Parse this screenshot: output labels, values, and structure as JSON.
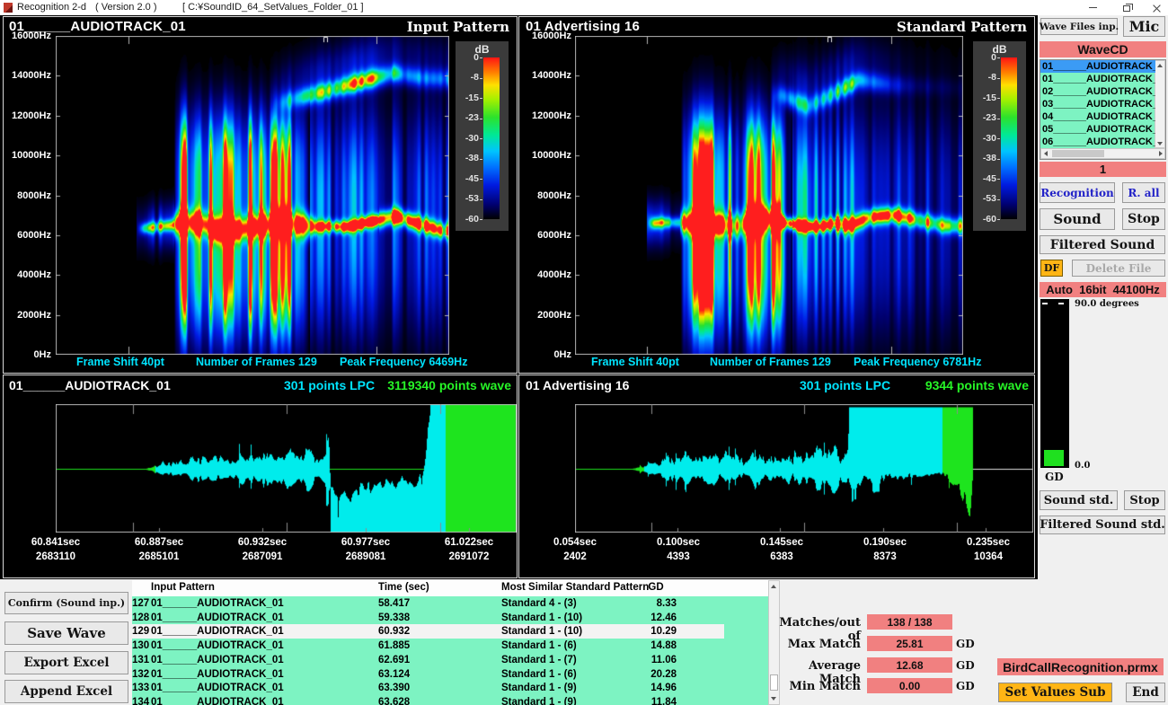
{
  "window": {
    "app_title": "Recognition 2-d",
    "version": "( Version 2.0 )",
    "path": "[ C:¥SoundID_64_SetValues_Folder_01 ]"
  },
  "colors": {
    "pink": "#f18080",
    "mint": "#7df3c2",
    "orange": "#ffb515",
    "selection_blue": "#3b9bf5",
    "cyan_text": "#00e4ff",
    "green_text": "#27f527"
  },
  "spectrograms": {
    "freq_ticks": [
      "16000Hz",
      "14000Hz",
      "12000Hz",
      "10000Hz",
      "8000Hz",
      "6000Hz",
      "4000Hz",
      "2000Hz",
      "0Hz"
    ],
    "colorbar": {
      "title": "dB",
      "ticks": [
        "0",
        "-8",
        "-15",
        "-23",
        "-30",
        "-38",
        "-45",
        "-53",
        "-60"
      ]
    },
    "left": {
      "title": "01______AUDIOTRACK_01",
      "corner_label": "Input Pattern",
      "frame_shift": "Frame Shift 40pt",
      "num_frames": "Number of Frames 129",
      "peak_freq": "Peak Frequency 6469Hz"
    },
    "right": {
      "title": "01 Advertising 16",
      "corner_label": "Standard Pattern",
      "frame_shift": "Frame Shift 40pt",
      "num_frames": "Number of Frames 129",
      "peak_freq": "Peak Frequency 6781Hz"
    }
  },
  "waveforms": {
    "left": {
      "title": "01______AUDIOTRACK_01",
      "lpc": "301 points LPC",
      "wave": "3119340 points wave",
      "time_ticks": [
        "60.841sec",
        "60.887sec",
        "60.932sec",
        "60.977sec",
        "61.022sec"
      ],
      "sample_ticks": [
        "2683110",
        "2685101",
        "2687091",
        "2689081",
        "2691072"
      ]
    },
    "right": {
      "title": "01 Advertising 16",
      "lpc": "301 points LPC",
      "wave": "9344 points wave",
      "time_ticks": [
        "0.054sec",
        "0.100sec",
        "0.145sec",
        "0.190sec",
        "0.235sec"
      ],
      "sample_ticks": [
        "2402",
        "4393",
        "6383",
        "8373",
        "10364"
      ]
    }
  },
  "sidebar": {
    "wave_files_btn": "Wave Files inp.",
    "mic_btn": "Mic",
    "wavecd_label": "WaveCD",
    "file_list": [
      "01______AUDIOTRACK_",
      "01______AUDIOTRACK_",
      "02______AUDIOTRACK_",
      "03______AUDIOTRACK_",
      "04______AUDIOTRACK_",
      "05______AUDIOTRACK_",
      "06______AUDIOTRACK_"
    ],
    "selected_index": 0,
    "count": "1",
    "recognition_btn": "Recognition",
    "r_all_btn": "R. all",
    "sound_btn": "Sound",
    "stop_btn": "Stop",
    "filtered_sound_btn": "Filtered Sound",
    "df_btn": "DF",
    "delete_file_btn": "Delete File",
    "format_label": "Auto  16bit  44100Hz",
    "meter_top_label": "90.0 degrees",
    "meter_bottom_label": "0.0",
    "meter_name": "GD",
    "sound_std_btn": "Sound std.",
    "stop_std_btn": "Stop",
    "filtered_sound_std_btn": "Filtered Sound std."
  },
  "actions": [
    "Confirm (Sound inp.)",
    "Save Wave",
    "Export Excel",
    "Append Excel"
  ],
  "results_table": {
    "headers": [
      "Input Pattern",
      "Time (sec)",
      "Most Similar Standard Pattern",
      "GD"
    ],
    "selected_no": "129",
    "rows": [
      {
        "no": "127",
        "input": "01______AUDIOTRACK_01",
        "time": "58.417",
        "standard": "Standard 4 - (3)",
        "gd": "8.33"
      },
      {
        "no": "128",
        "input": "01______AUDIOTRACK_01",
        "time": "59.338",
        "standard": "Standard 1 - (10)",
        "gd": "12.46"
      },
      {
        "no": "129",
        "input": "01______AUDIOTRACK_01",
        "time": "60.932",
        "standard": "Standard 1 - (10)",
        "gd": "10.29"
      },
      {
        "no": "130",
        "input": "01______AUDIOTRACK_01",
        "time": "61.885",
        "standard": "Standard 1 - (6)",
        "gd": "14.88"
      },
      {
        "no": "131",
        "input": "01______AUDIOTRACK_01",
        "time": "62.691",
        "standard": "Standard 1 - (7)",
        "gd": "11.06"
      },
      {
        "no": "132",
        "input": "01______AUDIOTRACK_01",
        "time": "63.124",
        "standard": "Standard 1 - (6)",
        "gd": "20.28"
      },
      {
        "no": "133",
        "input": "01______AUDIOTRACK_01",
        "time": "63.390",
        "standard": "Standard 1 - (9)",
        "gd": "14.96"
      },
      {
        "no": "134",
        "input": "01______AUDIOTRACK_01",
        "time": "63.628",
        "standard": "Standard 1 - (9)",
        "gd": "11.84"
      }
    ]
  },
  "summary": {
    "matches_label": "Matches/out of",
    "matches_value": "138 / 138",
    "max_label": "Max Match",
    "max_value": "25.81",
    "avg_label": "Average Match",
    "avg_value": "12.68",
    "min_label": "Min Match",
    "min_value": "0.00",
    "gd_unit": "GD",
    "prmx_file": "BirdCallRecognition.prmx",
    "set_values_btn": "Set Values Sub",
    "end_btn": "End"
  }
}
